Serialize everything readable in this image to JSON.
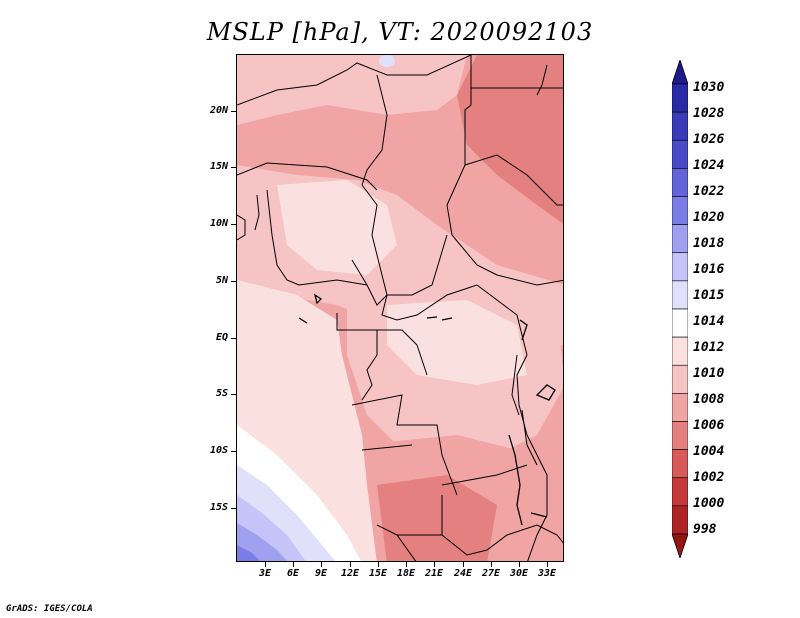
{
  "title": "MSLP [hPa], VT: 2020092103",
  "credit": "GrADS: IGES/COLA",
  "y_axis_labels": [
    "20N",
    "15N",
    "10N",
    "5N",
    "EQ",
    "5S",
    "10S",
    "15S"
  ],
  "x_axis_labels": [
    "3E",
    "6E",
    "9E",
    "12E",
    "15E",
    "18E",
    "21E",
    "24E",
    "27E",
    "30E",
    "33E"
  ],
  "colorbar": {
    "labels": [
      "1030",
      "1028",
      "1026",
      "1024",
      "1022",
      "1020",
      "1018",
      "1016",
      "1015",
      "1014",
      "1012",
      "1010",
      "1008",
      "1006",
      "1004",
      "1002",
      "1000",
      "998"
    ],
    "colors": [
      "#1e1a8e",
      "#2a2aa6",
      "#3a3ab8",
      "#4a4ac8",
      "#6464d8",
      "#7c7ce6",
      "#a0a0f0",
      "#c4c4f8",
      "#e0e0fb",
      "#ffffff",
      "#fbe0e0",
      "#f6c4c4",
      "#f0a4a4",
      "#e48080",
      "#d85a5a",
      "#c63a3a",
      "#ae2424",
      "#961616"
    ]
  },
  "colors": {
    "field_1012": "#fbe0e0",
    "field_1010": "#f6c4c4",
    "field_1008": "#f0a4a4",
    "field_1006": "#e48080",
    "field_1014": "#ffffff",
    "field_1016": "#c4c4f8",
    "field_1018": "#a0a0f0",
    "field_1020": "#7c7ce6"
  }
}
